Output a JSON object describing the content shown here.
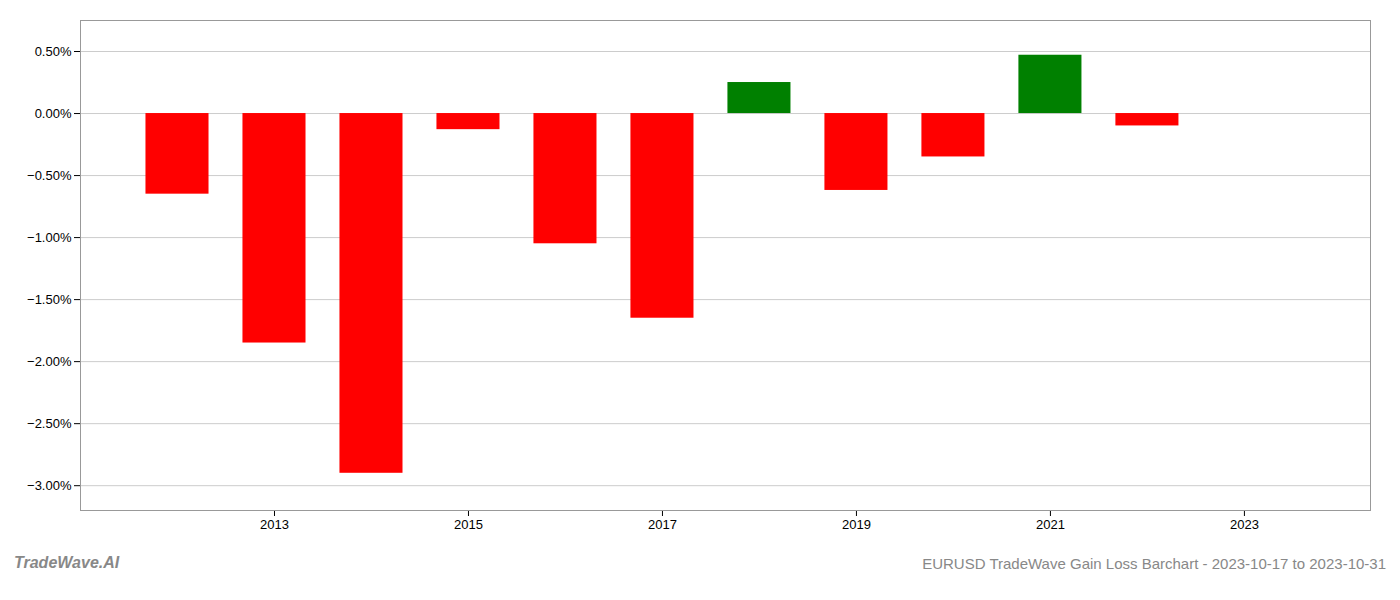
{
  "chart_data": {
    "type": "bar",
    "title": "EURUSD TradeWave Gain Loss Barchart - 2023-10-17 to 2023-10-31",
    "annotations": [
      "TradeWave.AI"
    ],
    "x": [
      2012,
      2013,
      2014,
      2015,
      2016,
      2017,
      2018,
      2019,
      2020,
      2021,
      2022
    ],
    "values": [
      -0.0065,
      -0.0185,
      -0.029,
      -0.0013,
      -0.0105,
      -0.0165,
      0.0025,
      -0.0062,
      -0.0035,
      0.0047,
      -0.001
    ],
    "colors": [
      "#ff0000",
      "#ff0000",
      "#ff0000",
      "#ff0000",
      "#ff0000",
      "#ff0000",
      "#008000",
      "#ff0000",
      "#ff0000",
      "#008000",
      "#ff0000"
    ],
    "xlim": [
      2011.0,
      2024.3
    ],
    "xticks": [
      2013,
      2015,
      2017,
      2019,
      2021,
      2023
    ],
    "ylim": [
      -0.032,
      0.0075
    ],
    "yticks": [
      {
        "value": -0.03,
        "label": "−3.00%"
      },
      {
        "value": -0.025,
        "label": "−2.50%"
      },
      {
        "value": -0.02,
        "label": "−2.00%"
      },
      {
        "value": -0.015,
        "label": "−1.50%"
      },
      {
        "value": -0.01,
        "label": "−1.00%"
      },
      {
        "value": -0.005,
        "label": "−0.50%"
      },
      {
        "value": 0.0,
        "label": "0.00%"
      },
      {
        "value": 0.005,
        "label": "0.50%"
      }
    ],
    "grid": true
  }
}
